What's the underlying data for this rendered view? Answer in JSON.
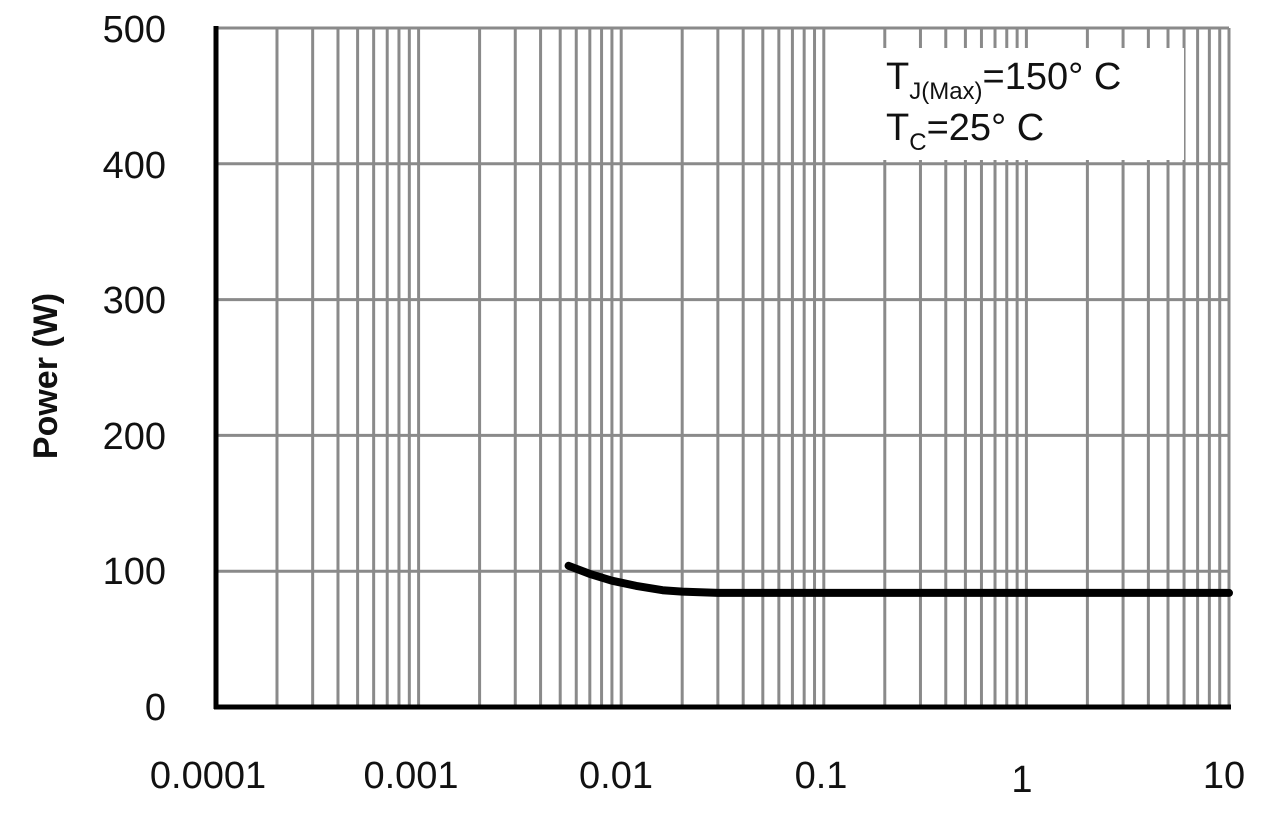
{
  "chart_data": {
    "type": "line",
    "title": "",
    "xlabel": "",
    "ylabel": "Power (W)",
    "xscale": "log",
    "xlim": [
      0.0001,
      10
    ],
    "ylim": [
      0,
      500
    ],
    "xticks": [
      "0.0001",
      "0.001",
      "0.01",
      "0.1",
      "1",
      "10"
    ],
    "yticks": [
      "0",
      "100",
      "200",
      "300",
      "400",
      "500"
    ],
    "grid": true,
    "series": [
      {
        "color": "#000000",
        "x": [
          0.0055,
          0.007,
          0.009,
          0.012,
          0.016,
          0.02,
          0.03,
          0.05,
          0.1,
          1,
          10
        ],
        "y": [
          104,
          98,
          93,
          89,
          86,
          85,
          84,
          84,
          84,
          84,
          84
        ]
      }
    ],
    "annotations": {
      "line1": {
        "main": "T",
        "sub": "J(Max)",
        "rest": "=150°  C"
      },
      "line2": {
        "main": "T",
        "sub": "C",
        "rest": "=25°  C"
      }
    }
  }
}
